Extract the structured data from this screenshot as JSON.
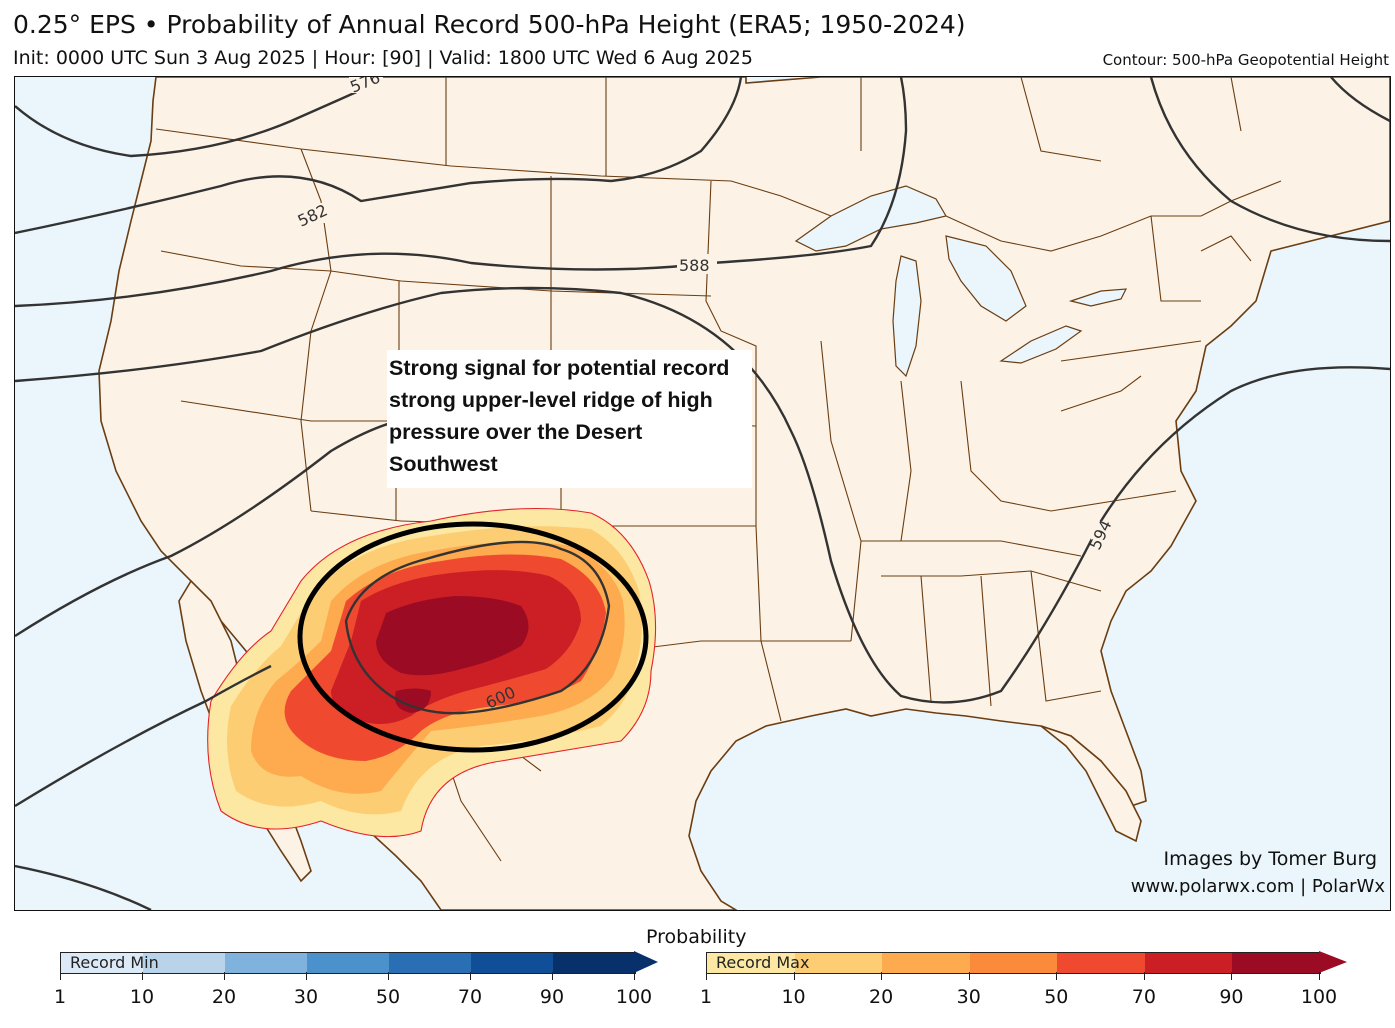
{
  "header": {
    "title": "0.25° EPS • Probability of Annual Record 500-hPa Height (ERA5; 1950-2024)",
    "subtitle": "Init: 0000 UTC Sun 3 Aug 2025 | Hour: [90] | Valid: 1800 UTC Wed 6 Aug 2025",
    "contour_label": "Contour: 500-hPa Geopotential Height"
  },
  "map": {
    "contour_labels": [
      "576",
      "582",
      "588",
      "594",
      "600"
    ],
    "annotation": "Strong signal for potential record strong upper-level ridge of high pressure over the Desert Southwest",
    "colors": {
      "land": "#fcf3e6",
      "water": "#eaf6fb",
      "borders": "#7a4a1a",
      "contours": "#333333",
      "highlight_ellipse": "#000000"
    }
  },
  "credits": {
    "line1": "Images by Tomer Burg",
    "line2": "www.polarwx.com | PolarWx"
  },
  "legend": {
    "title": "Probability",
    "min_label": "Record Min",
    "max_label": "Record Max",
    "ticks": [
      "1",
      "10",
      "20",
      "30",
      "50",
      "70",
      "90",
      "100"
    ],
    "min_colors": [
      "#dce9f6",
      "#b8d3ea",
      "#7fb2dc",
      "#4b92cc",
      "#2a6fb4",
      "#104f97",
      "#08306b"
    ],
    "max_colors": [
      "#fde8a3",
      "#fdcd73",
      "#fdab4e",
      "#fc8a3b",
      "#ef4a2f",
      "#cb1f25",
      "#9b0c24"
    ]
  }
}
